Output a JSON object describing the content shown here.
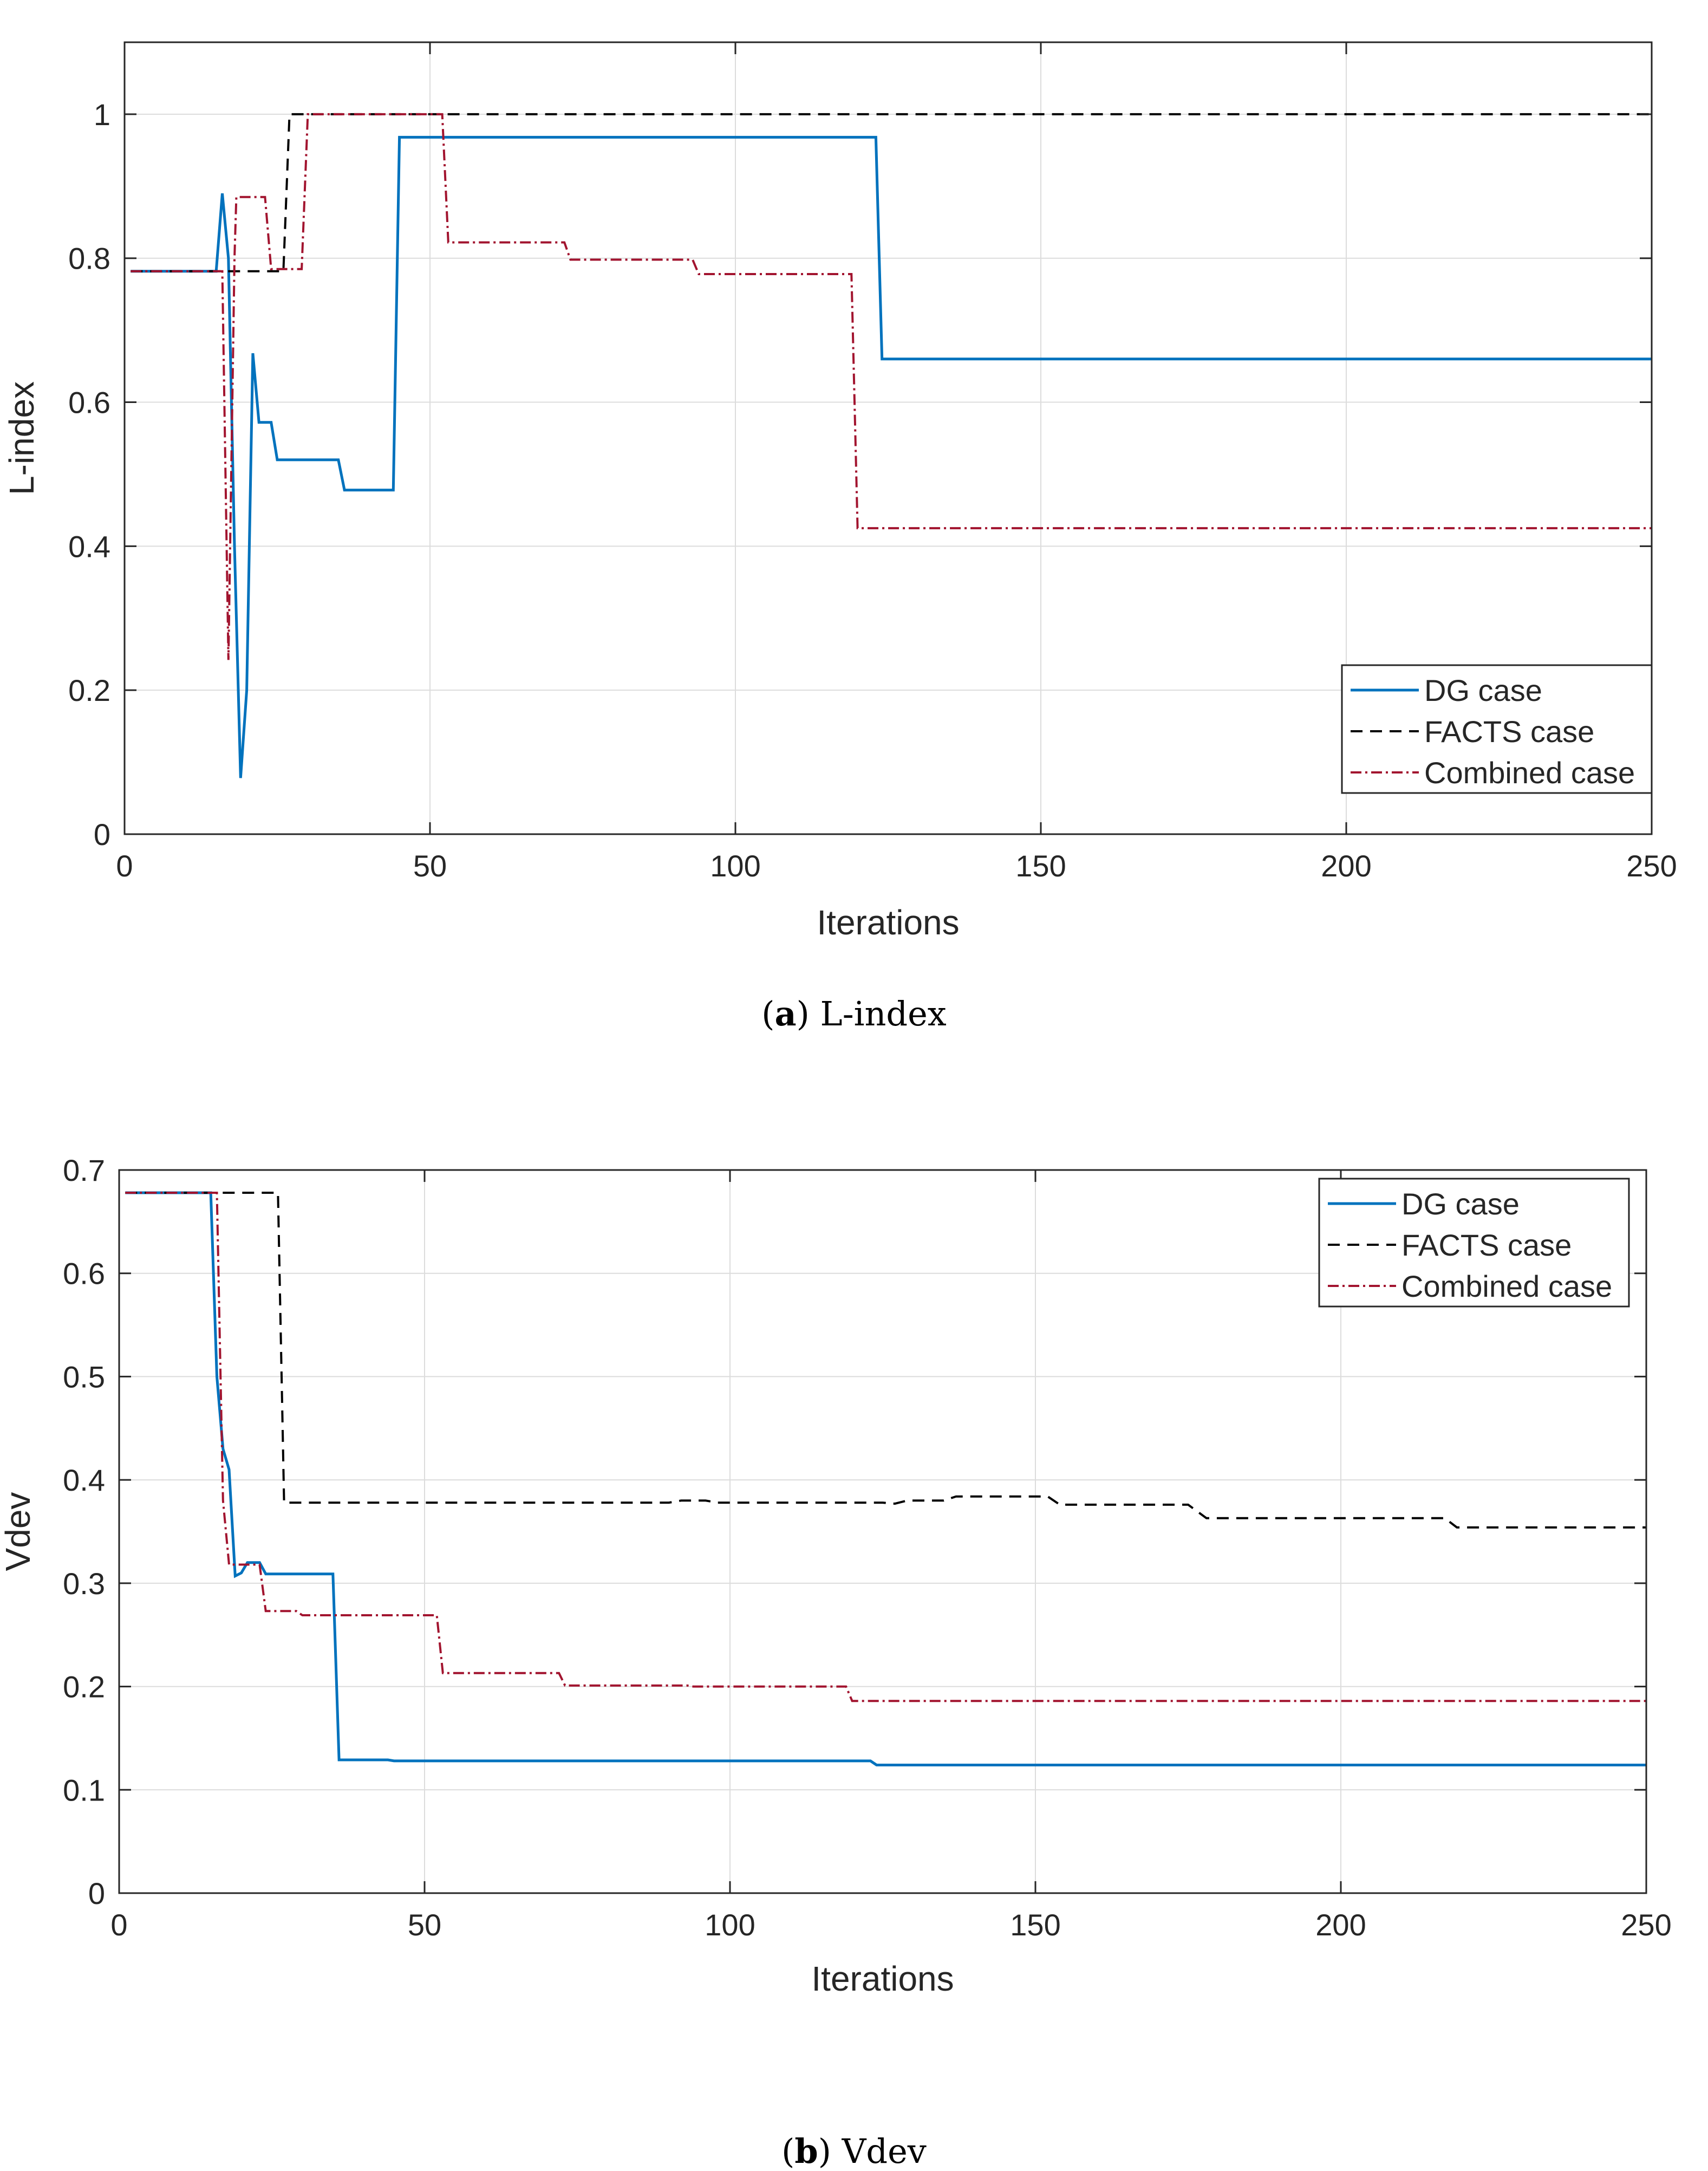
{
  "chart_data": [
    {
      "type": "line",
      "caption_letter": "a",
      "caption_text": "L-index",
      "xlabel": "Iterations",
      "ylabel": "L-index",
      "xlim": [
        0,
        250
      ],
      "ylim": [
        0,
        1.1
      ],
      "xticks": [
        0,
        50,
        100,
        150,
        200,
        250
      ],
      "yticks": [
        0,
        0.2,
        0.4,
        0.6,
        0.8,
        1
      ],
      "grid": true,
      "legend_position": "bottom-right",
      "series": [
        {
          "name": "DG case",
          "color": "#0072BD",
          "dash": "solid",
          "points": [
            [
              1,
              0.782
            ],
            [
              15,
              0.782
            ],
            [
              16,
              0.89
            ],
            [
              17,
              0.8
            ],
            [
              18,
              0.4
            ],
            [
              19,
              0.078
            ],
            [
              20,
              0.2
            ],
            [
              21,
              0.668
            ],
            [
              22,
              0.572
            ],
            [
              24,
              0.572
            ],
            [
              25,
              0.52
            ],
            [
              35,
              0.52
            ],
            [
              36,
              0.478
            ],
            [
              44,
              0.478
            ],
            [
              45,
              0.968
            ],
            [
              123,
              0.968
            ],
            [
              124,
              0.66
            ],
            [
              250,
              0.66
            ]
          ]
        },
        {
          "name": "FACTS case",
          "color": "#000000",
          "dash": "dashed",
          "points": [
            [
              1,
              0.782
            ],
            [
              26,
              0.782
            ],
            [
              27,
              1.0
            ],
            [
              250,
              1.0
            ]
          ]
        },
        {
          "name": "Combined case",
          "color": "#A2142F",
          "dash": "dashdot",
          "points": [
            [
              1,
              0.782
            ],
            [
              16,
              0.782
            ],
            [
              17,
              0.242
            ],
            [
              18,
              0.8
            ],
            [
              18.3,
              0.885
            ],
            [
              23,
              0.885
            ],
            [
              24,
              0.785
            ],
            [
              29,
              0.785
            ],
            [
              30,
              1.0
            ],
            [
              52,
              1.0
            ],
            [
              53,
              0.822
            ],
            [
              72,
              0.822
            ],
            [
              73,
              0.798
            ],
            [
              93,
              0.798
            ],
            [
              94,
              0.778
            ],
            [
              119,
              0.778
            ],
            [
              120,
              0.425
            ],
            [
              250,
              0.425
            ]
          ]
        }
      ]
    },
    {
      "type": "line",
      "caption_letter": "b",
      "caption_text": "Vdev",
      "xlabel": "Iterations",
      "ylabel": "Vdev",
      "xlim": [
        0,
        250
      ],
      "ylim": [
        0,
        0.7
      ],
      "xticks": [
        0,
        50,
        100,
        150,
        200,
        250
      ],
      "yticks": [
        0,
        0.1,
        0.2,
        0.3,
        0.4,
        0.5,
        0.6,
        0.7
      ],
      "grid": true,
      "legend_position": "top-right",
      "series": [
        {
          "name": "DG case",
          "color": "#0072BD",
          "dash": "solid",
          "points": [
            [
              1,
              0.678
            ],
            [
              15,
              0.678
            ],
            [
              16,
              0.5
            ],
            [
              17,
              0.43
            ],
            [
              18,
              0.41
            ],
            [
              19,
              0.307
            ],
            [
              20,
              0.31
            ],
            [
              21,
              0.32
            ],
            [
              23,
              0.32
            ],
            [
              24,
              0.309
            ],
            [
              35,
              0.309
            ],
            [
              36,
              0.129
            ],
            [
              44,
              0.129
            ],
            [
              45,
              0.128
            ],
            [
              123,
              0.128
            ],
            [
              124,
              0.124
            ],
            [
              250,
              0.124
            ]
          ]
        },
        {
          "name": "FACTS case",
          "color": "#000000",
          "dash": "dashed",
          "points": [
            [
              1,
              0.678
            ],
            [
              26,
              0.678
            ],
            [
              27,
              0.378
            ],
            [
              90,
              0.378
            ],
            [
              92,
              0.38
            ],
            [
              96,
              0.38
            ],
            [
              98,
              0.378
            ],
            [
              125,
              0.378
            ],
            [
              127,
              0.377
            ],
            [
              129,
              0.38
            ],
            [
              135,
              0.38
            ],
            [
              137,
              0.384
            ],
            [
              152,
              0.384
            ],
            [
              154,
              0.376
            ],
            [
              175,
              0.376
            ],
            [
              178,
              0.363
            ],
            [
              217,
              0.363
            ],
            [
              219,
              0.354
            ],
            [
              250,
              0.354
            ]
          ]
        },
        {
          "name": "Combined case",
          "color": "#A2142F",
          "dash": "dashdot",
          "points": [
            [
              1,
              0.678
            ],
            [
              16,
              0.678
            ],
            [
              17,
              0.38
            ],
            [
              18,
              0.318
            ],
            [
              23,
              0.318
            ],
            [
              24,
              0.273
            ],
            [
              29,
              0.273
            ],
            [
              30,
              0.269
            ],
            [
              52,
              0.269
            ],
            [
              53,
              0.213
            ],
            [
              72,
              0.213
            ],
            [
              73,
              0.201
            ],
            [
              93,
              0.201
            ],
            [
              94,
              0.2
            ],
            [
              119,
              0.2
            ],
            [
              120,
              0.186
            ],
            [
              250,
              0.186
            ]
          ]
        }
      ]
    }
  ]
}
